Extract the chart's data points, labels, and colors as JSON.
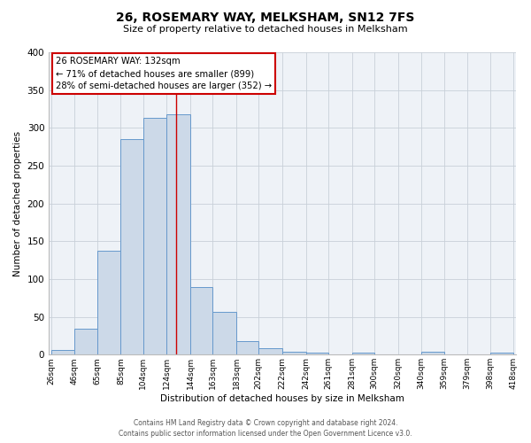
{
  "title": "26, ROSEMARY WAY, MELKSHAM, SN12 7FS",
  "subtitle": "Size of property relative to detached houses in Melksham",
  "xlabel": "Distribution of detached houses by size in Melksham",
  "ylabel": "Number of detached properties",
  "bin_edges": [
    26,
    46,
    65,
    85,
    104,
    124,
    144,
    163,
    183,
    202,
    222,
    242,
    261,
    281,
    300,
    320,
    340,
    359,
    379,
    398,
    418
  ],
  "bar_heights": [
    6,
    34,
    138,
    285,
    313,
    318,
    90,
    57,
    18,
    9,
    4,
    3,
    0,
    3,
    0,
    0,
    4,
    0,
    0,
    3
  ],
  "bar_color": "#ccd9e8",
  "bar_edge_color": "#6699cc",
  "vline_x": 132,
  "vline_color": "#cc0000",
  "ylim": [
    0,
    400
  ],
  "yticks": [
    0,
    50,
    100,
    150,
    200,
    250,
    300,
    350,
    400
  ],
  "annotation_title": "26 ROSEMARY WAY: 132sqm",
  "annotation_line1": "← 71% of detached houses are smaller (899)",
  "annotation_line2": "28% of semi-detached houses are larger (352) →",
  "annotation_box_facecolor": "#ffffff",
  "annotation_box_edgecolor": "#cc0000",
  "footer1": "Contains HM Land Registry data © Crown copyright and database right 2024.",
  "footer2": "Contains public sector information licensed under the Open Government Licence v3.0.",
  "background_color": "#ffffff",
  "plot_bg_color": "#eef2f7",
  "grid_color": "#c8d0d8",
  "tick_labels": [
    "26sqm",
    "46sqm",
    "65sqm",
    "85sqm",
    "104sqm",
    "124sqm",
    "144sqm",
    "163sqm",
    "183sqm",
    "202sqm",
    "222sqm",
    "242sqm",
    "261sqm",
    "281sqm",
    "300sqm",
    "320sqm",
    "340sqm",
    "359sqm",
    "379sqm",
    "398sqm",
    "418sqm"
  ]
}
